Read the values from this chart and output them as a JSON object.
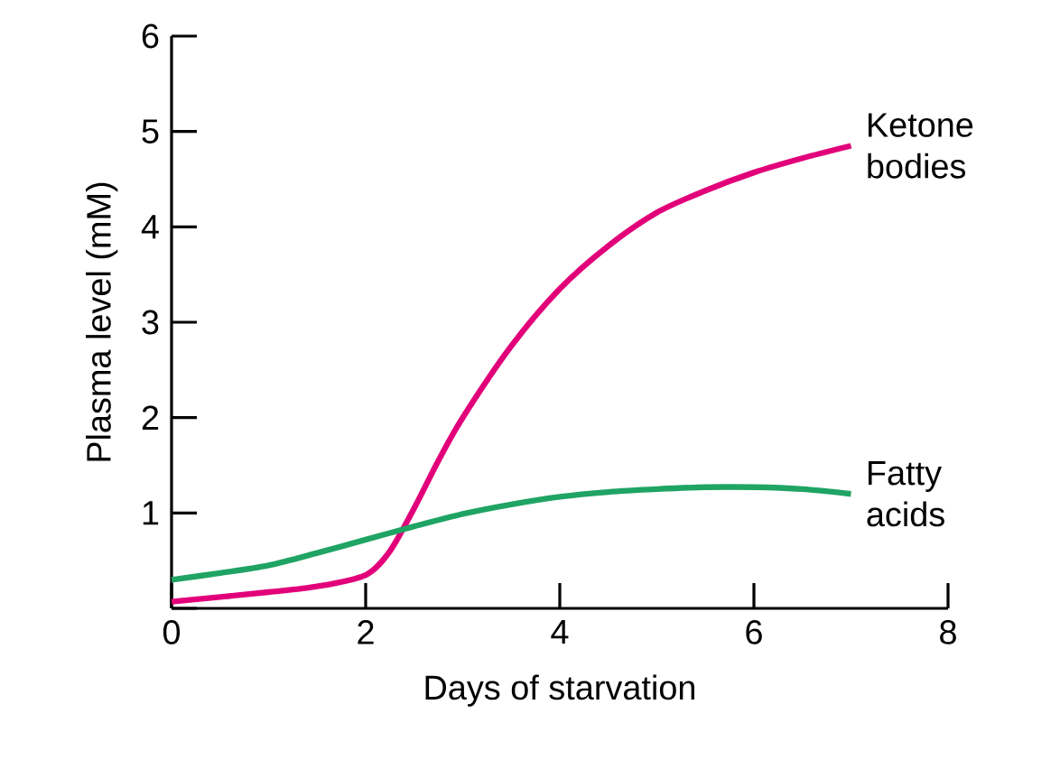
{
  "chart_data": {
    "type": "line",
    "xlabel": "Days of starvation",
    "ylabel": "Plasma level (mM)",
    "xlim": [
      0,
      8
    ],
    "ylim": [
      0,
      6
    ],
    "xticks": [
      0,
      2,
      4,
      6,
      8
    ],
    "yticks": [
      {
        "value": 0,
        "label": null
      },
      1,
      2,
      3,
      4,
      5,
      6
    ],
    "series": [
      {
        "name": "Ketone bodies",
        "color": "#e2007a",
        "x": [
          0,
          1,
          1.5,
          2,
          2.25,
          2.5,
          2.75,
          3,
          3.5,
          4,
          4.5,
          5,
          5.5,
          6,
          6.5,
          7
        ],
        "values": [
          0.07,
          0.17,
          0.23,
          0.35,
          0.6,
          1.05,
          1.55,
          2.0,
          2.75,
          3.35,
          3.8,
          4.15,
          4.38,
          4.57,
          4.72,
          4.85
        ]
      },
      {
        "name": "Fatty acids",
        "color": "#1fa463",
        "x": [
          0,
          0.5,
          1,
          1.5,
          2,
          2.5,
          3,
          3.5,
          4,
          4.5,
          5,
          5.5,
          6,
          6.5,
          7
        ],
        "values": [
          0.3,
          0.37,
          0.45,
          0.58,
          0.72,
          0.86,
          0.99,
          1.09,
          1.17,
          1.22,
          1.25,
          1.27,
          1.27,
          1.25,
          1.2
        ]
      }
    ]
  }
}
